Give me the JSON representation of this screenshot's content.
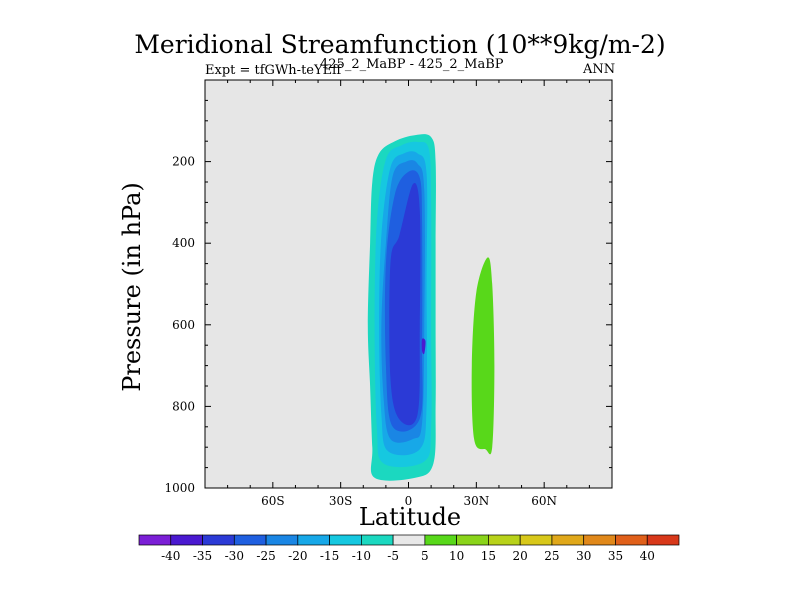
{
  "chart_data": {
    "type": "contour",
    "title": "Meridional Streamfunction (10**9kg/m-2)",
    "subtitle_left": "Expt = tfGWh-teYEff",
    "subtitle_center": "425_2_MaBP - 425_2_MaBP",
    "subtitle_right": "ANN",
    "xlabel": "Latitude",
    "ylabel": "Pressure (in hPa)",
    "xlim": [
      -90,
      90
    ],
    "ylim": [
      1000,
      0
    ],
    "x_ticks": [
      -60,
      -30,
      0,
      30,
      60
    ],
    "x_tick_labels": [
      "60S",
      "30S",
      "0",
      "30N",
      "60N"
    ],
    "y_ticks": [
      200,
      400,
      600,
      800,
      1000
    ],
    "y_tick_labels": [
      "200",
      "400",
      "600",
      "800",
      "1000"
    ],
    "colorbar_labels": [
      "-40",
      "-35",
      "-30",
      "-25",
      "-20",
      "-15",
      "-10",
      "-5",
      "5",
      "10",
      "15",
      "20",
      "25",
      "30",
      "35",
      "40"
    ],
    "colorbar_colors": [
      "#7b1fd6",
      "#4a19d0",
      "#2b3ad6",
      "#1f5fe0",
      "#1a86e4",
      "#17a8e8",
      "#16c8e0",
      "#1bd8c0",
      "#e8e8e8",
      "#58d81a",
      "#8ad41a",
      "#b8d21a",
      "#d8c81a",
      "#e0a81a",
      "#e0881a",
      "#e0601a",
      "#d8381a"
    ],
    "background_color": "#e6e6e6",
    "cells": [
      {
        "name": "southern-cell-level-minus5",
        "level": -5,
        "color": "#1bd8c0",
        "outline": [
          [
            -13,
            180
          ],
          [
            -6,
            150
          ],
          [
            3,
            135
          ],
          [
            10,
            140
          ],
          [
            12,
            200
          ],
          [
            12,
            400
          ],
          [
            12,
            600
          ],
          [
            12,
            800
          ],
          [
            11,
            940
          ],
          [
            3,
            975
          ],
          [
            -15,
            975
          ],
          [
            -16,
            900
          ],
          [
            -17,
            750
          ],
          [
            -18,
            600
          ],
          [
            -17,
            400
          ],
          [
            -16,
            250
          ]
        ]
      },
      {
        "name": "southern-cell-level-minus10",
        "level": -10,
        "color": "#16c8e0",
        "outline": [
          [
            -10,
            195
          ],
          [
            -3,
            160
          ],
          [
            4,
            152
          ],
          [
            9,
            170
          ],
          [
            10,
            300
          ],
          [
            10,
            600
          ],
          [
            10,
            850
          ],
          [
            7,
            935
          ],
          [
            -11,
            940
          ],
          [
            -14,
            850
          ],
          [
            -15,
            600
          ],
          [
            -14,
            350
          ]
        ]
      },
      {
        "name": "southern-cell-level-minus15",
        "level": -15,
        "color": "#17a8e8",
        "outline": [
          [
            -8,
            215
          ],
          [
            -2,
            180
          ],
          [
            4,
            180
          ],
          [
            8,
            230
          ],
          [
            8,
            500
          ],
          [
            8,
            800
          ],
          [
            5,
            905
          ],
          [
            -9,
            910
          ],
          [
            -12,
            820
          ],
          [
            -13,
            600
          ],
          [
            -12,
            380
          ]
        ]
      },
      {
        "name": "southern-cell-level-minus20",
        "level": -20,
        "color": "#1a86e4",
        "outline": [
          [
            -7,
            235
          ],
          [
            -1,
            200
          ],
          [
            4,
            205
          ],
          [
            7,
            270
          ],
          [
            7,
            600
          ],
          [
            6,
            840
          ],
          [
            2,
            880
          ],
          [
            -8,
            880
          ],
          [
            -11,
            780
          ],
          [
            -12,
            600
          ],
          [
            -10,
            400
          ]
        ]
      },
      {
        "name": "southern-cell-level-minus25",
        "level": -25,
        "color": "#1f5fe0",
        "outline": [
          [
            -6,
            280
          ],
          [
            0,
            225
          ],
          [
            5,
            240
          ],
          [
            6,
            350
          ],
          [
            6,
            650
          ],
          [
            5,
            830
          ],
          [
            -7,
            850
          ],
          [
            -10,
            700
          ],
          [
            -10,
            450
          ]
        ]
      },
      {
        "name": "southern-cell-level-minus30",
        "level": -30,
        "color": "#2b3ad6",
        "outline": [
          [
            -4,
            380
          ],
          [
            2,
            255
          ],
          [
            5,
            320
          ],
          [
            5,
            600
          ],
          [
            4,
            820
          ],
          [
            -4,
            832
          ],
          [
            -8,
            730
          ],
          [
            -8,
            450
          ]
        ]
      },
      {
        "name": "southern-cell-level-minus35",
        "level": -35,
        "color": "#4a19d0",
        "outline": [
          [
            6,
            635
          ],
          [
            7.5,
            640
          ],
          [
            7,
            670
          ],
          [
            6,
            665
          ]
        ]
      },
      {
        "name": "northern-cell-level-5",
        "level": 5,
        "color": "#58d81a",
        "outline": [
          [
            35,
            435
          ],
          [
            37,
            500
          ],
          [
            38,
            700
          ],
          [
            37,
            900
          ],
          [
            34,
            905
          ],
          [
            29,
            880
          ],
          [
            28,
            700
          ],
          [
            30,
            520
          ]
        ]
      }
    ]
  }
}
